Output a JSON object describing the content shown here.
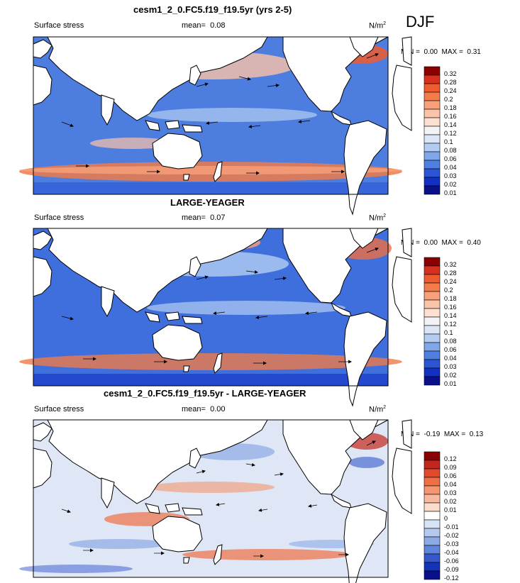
{
  "season": "DJF",
  "panels": [
    {
      "title": "cesm1_2_0.FC5.f19_f19.5yr (yrs 2-5)",
      "variable": "Surface stress",
      "mean_label": "mean=",
      "mean_value": "0.08",
      "units": "N/m",
      "units_exp": "2",
      "min_label": "MIN =",
      "min_value": "0.00",
      "max_label": "MAX =",
      "max_value": "0.31",
      "colorbar": [
        "0.32",
        "0.28",
        "0.24",
        "0.2",
        "0.18",
        "0.16",
        "0.14",
        "0.12",
        "0.1",
        "0.08",
        "0.06",
        "0.04",
        "0.03",
        "0.02",
        "0.01"
      ]
    },
    {
      "title": "LARGE-YEAGER",
      "variable": "Surface stress",
      "mean_label": "mean=",
      "mean_value": "0.07",
      "units": "N/m",
      "units_exp": "2",
      "min_label": "MIN =",
      "min_value": "0.00",
      "max_label": "MAX =",
      "max_value": "0.40",
      "colorbar": [
        "0.32",
        "0.28",
        "0.24",
        "0.2",
        "0.18",
        "0.16",
        "0.14",
        "0.12",
        "0.1",
        "0.08",
        "0.06",
        "0.04",
        "0.03",
        "0.02",
        "0.01"
      ]
    },
    {
      "title": "cesm1_2_0.FC5.f19_f19.5yr - LARGE-YEAGER",
      "variable": "Surface stress",
      "mean_label": "mean=",
      "mean_value": "0.00",
      "units": "N/m",
      "units_exp": "2",
      "min_label": "MIN =",
      "min_value": "-0.19",
      "max_label": "MAX =",
      "max_value": "0.13",
      "colorbar": [
        "0.12",
        "0.09",
        "0.06",
        "0.04",
        "0.03",
        "0.02",
        "0.01",
        "0",
        "-0.01",
        "-0.02",
        "-0.03",
        "-0.04",
        "-0.06",
        "-0.09",
        "-0.12"
      ]
    }
  ],
  "colors": {
    "abs_scale": [
      "#8b0000",
      "#d7301f",
      "#ef5a2f",
      "#f47c4a",
      "#f8a07a",
      "#fbc3a8",
      "#fde0d2",
      "#f2f2f7",
      "#dbe6f6",
      "#b3cdf2",
      "#7fa7ea",
      "#4f7fe0",
      "#2c55d6",
      "#1230c4",
      "#0a0f8a"
    ],
    "diff_scale": [
      "#8b0000",
      "#c2261c",
      "#e04a2a",
      "#ef6f45",
      "#f59670",
      "#f9b99e",
      "#fcdccd",
      "#ffffff",
      "#d6e2f6",
      "#b3c9f0",
      "#8caae6",
      "#5f85dc",
      "#3458cc",
      "#1433b8",
      "#0a0f8a"
    ],
    "land": "#ffffff",
    "coast": "#000000"
  }
}
